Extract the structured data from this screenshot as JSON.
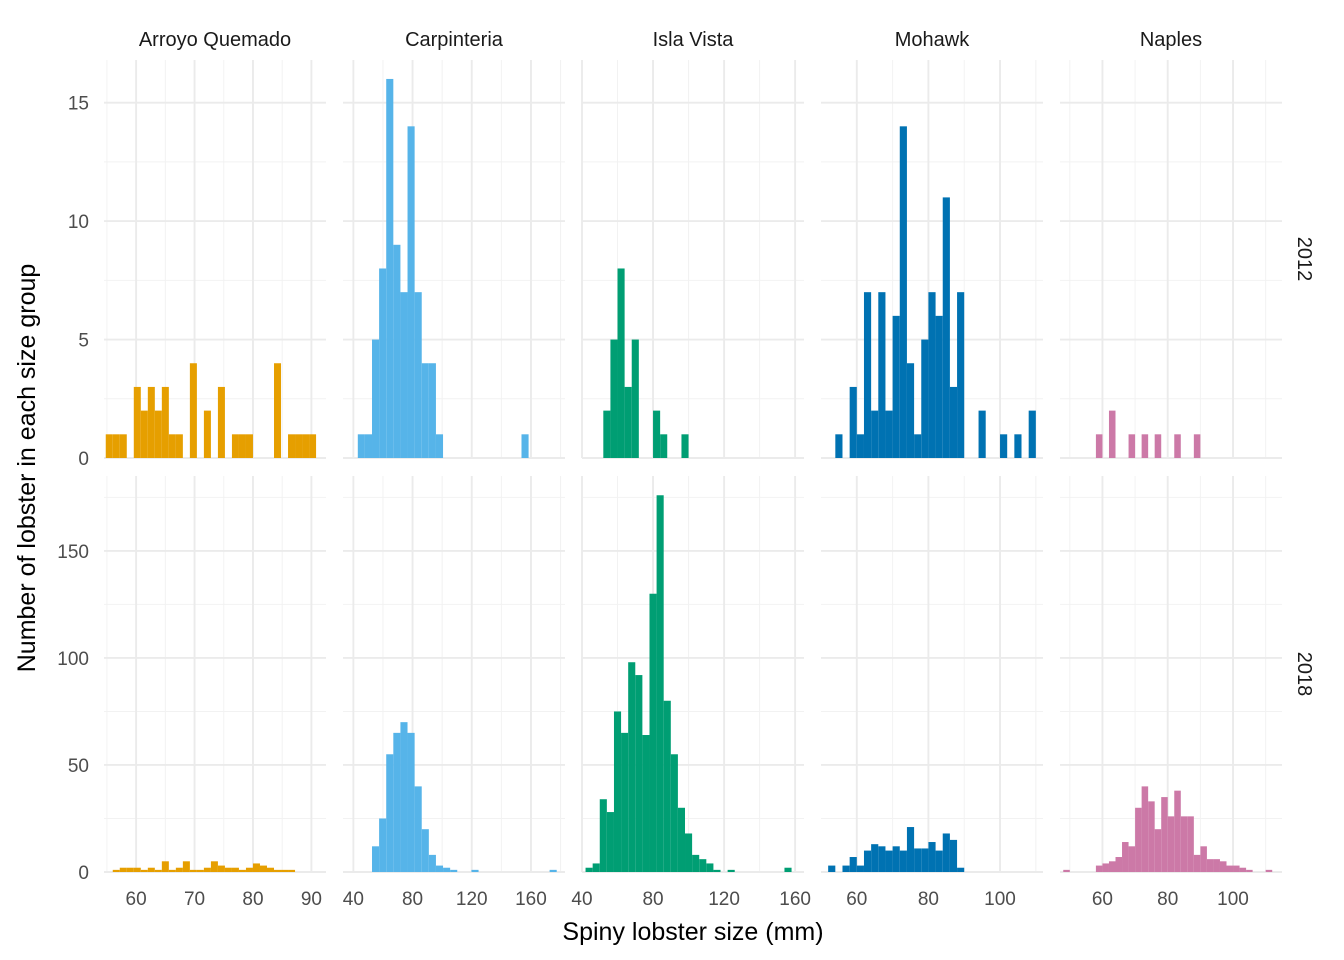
{
  "chart_data": {
    "type": "bar",
    "title": "",
    "xlabel": "Spiny lobster size (mm)",
    "ylabel": "Number of lobster in each size group",
    "grid": true,
    "legend": "none",
    "sites": [
      {
        "name": "Arroyo Quemado",
        "color": "#E69F00",
        "xlim": [
          54.5,
          92.5
        ],
        "xticks": [
          60,
          70,
          80,
          90
        ],
        "bin_width": 1.2
      },
      {
        "name": "Carpinteria",
        "color": "#56B4E9",
        "xlim": [
          33,
          183
        ],
        "xticks": [
          40,
          80,
          120,
          160
        ],
        "bin_width": 4.8
      },
      {
        "name": "Isla Vista",
        "color": "#009E73",
        "xlim": [
          40,
          165
        ],
        "xticks": [
          40,
          80,
          120,
          160
        ],
        "bin_width": 4.0
      },
      {
        "name": "Mohawk",
        "color": "#0072B2",
        "xlim": [
          50,
          112
        ],
        "xticks": [
          60,
          80,
          100
        ],
        "bin_width": 2.0
      },
      {
        "name": "Naples",
        "color": "#CC79A7",
        "xlim": [
          47,
          115
        ],
        "xticks": [
          60,
          80,
          100
        ],
        "bin_width": 2.0
      }
    ],
    "years": [
      {
        "label": "2012",
        "ylim": [
          0,
          16.8
        ],
        "yticks": [
          0,
          5,
          10,
          15
        ]
      },
      {
        "label": "2018",
        "ylim": [
          0,
          185
        ],
        "yticks": [
          0,
          50,
          100,
          150
        ]
      }
    ],
    "panels": [
      {
        "site": "Arroyo Quemado",
        "year": "2012",
        "x": [
          55.4,
          56.6,
          57.8,
          60.2,
          61.4,
          62.6,
          63.8,
          65.0,
          66.2,
          67.4,
          69.8,
          72.2,
          74.6,
          77.0,
          78.2,
          79.4,
          84.2,
          86.6,
          87.8,
          89.0,
          90.2
        ],
        "y": [
          1,
          1,
          1,
          3,
          2,
          3,
          2,
          3,
          1,
          1,
          4,
          2,
          3,
          1,
          1,
          1,
          4,
          1,
          1,
          1,
          1
        ]
      },
      {
        "site": "Carpinteria",
        "year": "2012",
        "x": [
          45.4,
          50.2,
          55.0,
          59.8,
          64.6,
          69.4,
          74.2,
          79.0,
          83.8,
          88.6,
          93.4,
          98.2,
          156.0
        ],
        "y": [
          1,
          1,
          5,
          8,
          16,
          9,
          7,
          14,
          7,
          4,
          4,
          1,
          1
        ]
      },
      {
        "site": "Isla Vista",
        "year": "2012",
        "x": [
          54.0,
          58.0,
          62.0,
          66.0,
          70.0,
          82.0,
          86.0,
          98.0
        ],
        "y": [
          2,
          5,
          8,
          3,
          5,
          2,
          1,
          1
        ]
      },
      {
        "site": "Mohawk",
        "year": "2012",
        "x": [
          55.0,
          59.0,
          61.0,
          63.0,
          65.0,
          67.0,
          69.0,
          71.0,
          73.0,
          75.0,
          77.0,
          79.0,
          81.0,
          83.0,
          85.0,
          87.0,
          89.0,
          95.0,
          101.0,
          105.0,
          109.0
        ],
        "y": [
          1,
          3,
          1,
          7,
          2,
          7,
          2,
          6,
          14,
          4,
          1,
          5,
          7,
          6,
          11,
          3,
          7,
          2,
          1,
          1,
          2
        ]
      },
      {
        "site": "Naples",
        "year": "2012",
        "x": [
          59.0,
          63.0,
          69.0,
          73.0,
          77.0,
          83.0,
          89.0
        ],
        "y": [
          1,
          2,
          1,
          1,
          1,
          1,
          1
        ]
      },
      {
        "site": "Arroyo Quemado",
        "year": "2018",
        "x": [
          56.6,
          57.8,
          59.0,
          60.2,
          61.4,
          62.6,
          63.8,
          65.0,
          66.2,
          67.4,
          68.6,
          69.8,
          71.0,
          72.2,
          73.4,
          74.6,
          75.8,
          77.0,
          78.2,
          79.4,
          80.6,
          81.8,
          83.0,
          84.2,
          85.4,
          86.6
        ],
        "y": [
          1,
          2,
          2,
          2,
          1,
          2,
          1,
          5,
          1,
          2,
          5,
          1,
          1,
          2,
          5,
          3,
          2,
          2,
          1,
          2,
          4,
          3,
          2,
          1,
          1,
          1
        ]
      },
      {
        "site": "Carpinteria",
        "year": "2018",
        "x": [
          55.0,
          59.8,
          64.6,
          69.4,
          74.2,
          79.0,
          83.8,
          88.6,
          93.4,
          98.2,
          103.0,
          107.8,
          122.2,
          175.0
        ],
        "y": [
          12,
          25,
          55,
          65,
          70,
          65,
          40,
          20,
          8,
          3,
          2,
          1,
          1,
          1
        ]
      },
      {
        "site": "Isla Vista",
        "year": "2018",
        "x": [
          44.0,
          48.0,
          52.0,
          56.0,
          60.0,
          64.0,
          68.0,
          72.0,
          76.0,
          80.0,
          84.0,
          88.0,
          92.0,
          96.0,
          100.0,
          104.0,
          108.0,
          112.0,
          116.0,
          124.0,
          156.0
        ],
        "y": [
          2,
          4,
          34,
          28,
          75,
          65,
          98,
          92,
          64,
          130,
          176,
          80,
          55,
          30,
          18,
          8,
          6,
          4,
          1,
          1,
          2
        ]
      },
      {
        "site": "Mohawk",
        "year": "2018",
        "x": [
          53.0,
          57.0,
          59.0,
          61.0,
          63.0,
          65.0,
          67.0,
          69.0,
          71.0,
          73.0,
          75.0,
          77.0,
          79.0,
          81.0,
          83.0,
          85.0,
          87.0,
          89.0
        ],
        "y": [
          3,
          3,
          7,
          3,
          10,
          13,
          12,
          10,
          12,
          10,
          21,
          11,
          11,
          14,
          10,
          18,
          15,
          2
        ]
      },
      {
        "site": "Naples",
        "year": "2018",
        "x": [
          49.0,
          59.0,
          61.0,
          63.0,
          65.0,
          67.0,
          69.0,
          71.0,
          73.0,
          75.0,
          77.0,
          79.0,
          81.0,
          83.0,
          85.0,
          87.0,
          89.0,
          91.0,
          93.0,
          95.0,
          97.0,
          99.0,
          101.0,
          103.0,
          105.0,
          111.0
        ],
        "y": [
          1,
          3,
          4,
          5,
          7,
          14,
          12,
          30,
          40,
          33,
          20,
          35,
          26,
          38,
          26,
          26,
          8,
          12,
          6,
          6,
          5,
          3,
          3,
          2,
          1,
          1
        ]
      }
    ]
  }
}
